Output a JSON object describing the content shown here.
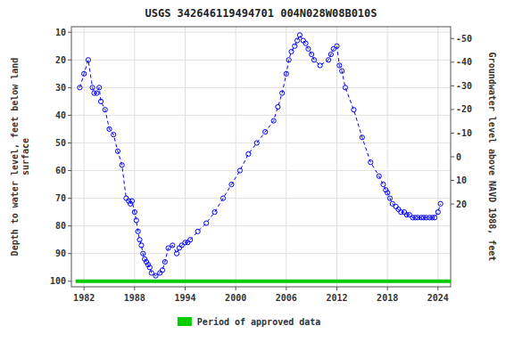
{
  "chart_data": {
    "type": "line",
    "title": "USGS 342646119494701 004N028W08B010S",
    "ylabel": "Depth to water level, feet below land\nsurface",
    "y2label": "Groundwater level above NAVD 1988, feet",
    "xlim": [
      1980.5,
      2025.5
    ],
    "ylim": [
      102,
      8
    ],
    "y2lim": [
      55,
      -55
    ],
    "xticks": [
      1982,
      1988,
      1994,
      2000,
      2006,
      2012,
      2018,
      2024
    ],
    "yticks": [
      10,
      20,
      30,
      40,
      50,
      60,
      70,
      80,
      90,
      100
    ],
    "y2ticks": [
      20,
      10,
      0,
      -10,
      -20,
      -30,
      -40,
      -50
    ],
    "grid": true,
    "legend": "bottom",
    "series": [
      {
        "type": "line",
        "color": "#0000ff",
        "line_style": "dashed",
        "marker": "circle",
        "x": [
          1981.5,
          1982.0,
          1982.5,
          1983.0,
          1983.2,
          1983.5,
          1983.8,
          1984.0,
          1984.5,
          1985.0,
          1985.5,
          1986.0,
          1986.5,
          1987.0,
          1987.3,
          1987.5,
          1987.7,
          1988.0,
          1988.2,
          1988.4,
          1988.6,
          1988.8,
          1989.0,
          1989.2,
          1989.4,
          1989.6,
          1989.8,
          1990.0,
          1990.5,
          1991.0,
          1991.3,
          1991.6,
          1992.0,
          1992.5,
          1993.0,
          1993.3,
          1993.6,
          1994.0,
          1994.3,
          1994.6,
          1995.5,
          1996.5,
          1997.5,
          1998.5,
          1999.5,
          2000.5,
          2001.5,
          2002.5,
          2003.5,
          2004.5,
          2005.0,
          2005.5,
          2006.0,
          2006.3,
          2006.6,
          2007.0,
          2007.3,
          2007.6,
          2008.0,
          2008.3,
          2008.6,
          2009.0,
          2009.3,
          2010.0,
          2011.0,
          2011.3,
          2011.6,
          2012.0,
          2012.3,
          2012.6,
          2013.0,
          2014.0,
          2015.0,
          2016.0,
          2017.0,
          2017.5,
          2017.8,
          2018.0,
          2018.3,
          2018.6,
          2019.0,
          2019.3,
          2019.6,
          2020.0,
          2020.3,
          2020.6,
          2021.0,
          2021.3,
          2021.6,
          2022.0,
          2022.3,
          2022.6,
          2023.0,
          2023.3,
          2023.6,
          2024.0,
          2024.3
        ],
        "values": [
          30,
          25,
          20,
          30,
          32,
          32,
          30,
          35,
          38,
          45,
          47,
          53,
          58,
          70,
          71,
          72,
          71,
          75,
          78,
          82,
          85,
          87,
          90,
          92,
          93,
          94,
          95,
          97,
          98,
          97,
          96,
          93,
          88,
          87,
          90,
          88,
          87,
          86,
          86,
          85,
          82,
          79,
          75,
          70,
          65,
          60,
          54,
          50,
          46,
          42,
          37,
          32,
          25,
          20,
          17,
          15,
          13,
          11,
          13,
          14,
          16,
          18,
          20,
          22,
          20,
          18,
          16,
          15,
          22,
          24,
          30,
          38,
          48,
          57,
          62,
          65,
          67,
          68,
          70,
          72,
          73,
          74,
          75,
          75,
          76,
          76,
          77,
          77,
          77,
          77,
          77,
          77,
          77,
          77,
          77,
          75,
          72
        ]
      },
      {
        "name": "Period of approved data",
        "type": "line",
        "color": "#00cc00",
        "x": [
          1981.0,
          2025.5
        ],
        "values": [
          100,
          100
        ]
      }
    ]
  }
}
